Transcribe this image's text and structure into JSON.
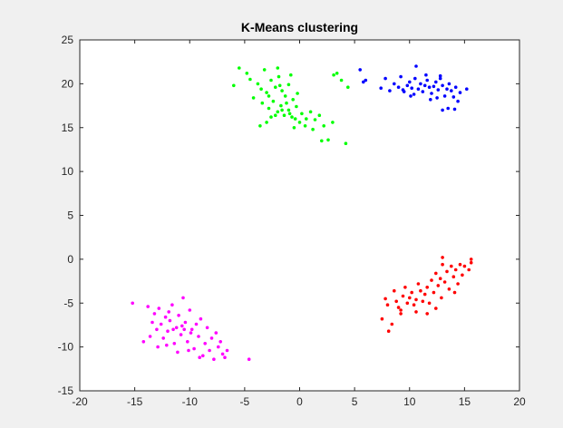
{
  "chart_data": {
    "type": "scatter",
    "title": "K-Means clustering",
    "xlabel": "",
    "ylabel": "",
    "xlim": [
      -20,
      20
    ],
    "ylim": [
      -15,
      25
    ],
    "xticks": [
      -20,
      -15,
      -10,
      -5,
      0,
      5,
      10,
      15,
      20
    ],
    "yticks": [
      -15,
      -10,
      -5,
      0,
      5,
      10,
      15,
      20,
      25
    ],
    "grid": false,
    "legend": "none",
    "series": [
      {
        "color": "#00ff00",
        "points": [
          [
            -5.5,
            21.8
          ],
          [
            -4.8,
            21.2
          ],
          [
            -3.2,
            21.6
          ],
          [
            -2.0,
            21.8
          ],
          [
            -0.8,
            21.0
          ],
          [
            -6.0,
            19.8
          ],
          [
            -4.5,
            20.5
          ],
          [
            -3.8,
            20.0
          ],
          [
            -3.5,
            19.4
          ],
          [
            -3.0,
            19.0
          ],
          [
            -2.6,
            20.4
          ],
          [
            -2.2,
            19.6
          ],
          [
            -1.9,
            20.8
          ],
          [
            -1.6,
            19.2
          ],
          [
            -1.3,
            18.6
          ],
          [
            -1.0,
            19.9
          ],
          [
            -0.6,
            18.2
          ],
          [
            -0.2,
            18.9
          ],
          [
            -4.2,
            18.4
          ],
          [
            -3.4,
            17.8
          ],
          [
            -2.8,
            17.2
          ],
          [
            -2.4,
            18.0
          ],
          [
            -2.0,
            16.8
          ],
          [
            -1.7,
            17.5
          ],
          [
            -1.4,
            16.4
          ],
          [
            -1.0,
            17.0
          ],
          [
            -0.7,
            16.2
          ],
          [
            -0.3,
            17.4
          ],
          [
            0.2,
            16.6
          ],
          [
            0.6,
            16.0
          ],
          [
            1.0,
            16.8
          ],
          [
            1.4,
            15.9
          ],
          [
            1.8,
            16.4
          ],
          [
            0.0,
            15.6
          ],
          [
            0.5,
            15.2
          ],
          [
            -0.5,
            15.0
          ],
          [
            1.2,
            14.8
          ],
          [
            2.2,
            15.2
          ],
          [
            3.0,
            15.6
          ],
          [
            2.6,
            13.6
          ],
          [
            2.0,
            13.5
          ],
          [
            -2.6,
            16.2
          ],
          [
            -3.0,
            15.6
          ],
          [
            -3.6,
            15.2
          ],
          [
            -1.6,
            17.0
          ],
          [
            -2.2,
            16.4
          ],
          [
            -1.2,
            17.8
          ],
          [
            -0.9,
            16.6
          ],
          [
            -0.4,
            16.0
          ],
          [
            3.4,
            21.2
          ],
          [
            3.8,
            20.4
          ],
          [
            3.1,
            21.0
          ],
          [
            4.4,
            19.6
          ],
          [
            4.2,
            13.2
          ],
          [
            -1.8,
            19.8
          ],
          [
            -2.8,
            18.6
          ]
        ]
      },
      {
        "color": "#0000ff",
        "points": [
          [
            5.5,
            21.6
          ],
          [
            6.0,
            20.4
          ],
          [
            5.8,
            20.2
          ],
          [
            7.4,
            19.5
          ],
          [
            7.8,
            20.6
          ],
          [
            8.2,
            19.2
          ],
          [
            8.6,
            20.0
          ],
          [
            9.0,
            19.6
          ],
          [
            9.2,
            20.8
          ],
          [
            9.5,
            19.1
          ],
          [
            9.8,
            19.8
          ],
          [
            10.0,
            20.2
          ],
          [
            10.2,
            19.5
          ],
          [
            10.4,
            18.8
          ],
          [
            10.5,
            20.6
          ],
          [
            10.6,
            22.0
          ],
          [
            10.8,
            19.4
          ],
          [
            11.0,
            20.0
          ],
          [
            11.2,
            19.1
          ],
          [
            11.4,
            19.8
          ],
          [
            11.6,
            20.4
          ],
          [
            11.8,
            19.6
          ],
          [
            12.0,
            18.9
          ],
          [
            12.2,
            19.7
          ],
          [
            12.4,
            20.2
          ],
          [
            12.6,
            19.3
          ],
          [
            12.8,
            20.6
          ],
          [
            13.0,
            19.8
          ],
          [
            13.2,
            18.6
          ],
          [
            13.4,
            19.4
          ],
          [
            13.6,
            20.0
          ],
          [
            13.8,
            19.2
          ],
          [
            14.0,
            18.5
          ],
          [
            14.2,
            19.6
          ],
          [
            14.4,
            18.0
          ],
          [
            14.6,
            19.0
          ],
          [
            15.2,
            19.4
          ],
          [
            13.0,
            17.0
          ],
          [
            13.5,
            17.2
          ],
          [
            14.1,
            17.1
          ],
          [
            11.5,
            21.0
          ],
          [
            12.8,
            20.9
          ],
          [
            10.1,
            18.6
          ],
          [
            9.4,
            19.3
          ],
          [
            11.9,
            18.2
          ],
          [
            12.5,
            18.4
          ]
        ]
      },
      {
        "color": "#ff0000",
        "points": [
          [
            7.5,
            -6.8
          ],
          [
            7.8,
            -4.5
          ],
          [
            8.0,
            -5.2
          ],
          [
            8.1,
            -8.2
          ],
          [
            8.4,
            -7.4
          ],
          [
            8.6,
            -3.6
          ],
          [
            8.8,
            -4.8
          ],
          [
            9.0,
            -5.5
          ],
          [
            9.2,
            -6.2
          ],
          [
            9.4,
            -4.2
          ],
          [
            9.6,
            -3.2
          ],
          [
            9.8,
            -5.0
          ],
          [
            10.0,
            -4.4
          ],
          [
            10.2,
            -3.8
          ],
          [
            10.4,
            -5.2
          ],
          [
            10.6,
            -4.6
          ],
          [
            10.8,
            -2.8
          ],
          [
            11.0,
            -3.6
          ],
          [
            11.2,
            -4.8
          ],
          [
            11.4,
            -4.0
          ],
          [
            11.6,
            -3.2
          ],
          [
            11.8,
            -5.0
          ],
          [
            12.0,
            -2.4
          ],
          [
            12.2,
            -3.8
          ],
          [
            12.4,
            -1.6
          ],
          [
            12.6,
            -3.0
          ],
          [
            12.8,
            -2.2
          ],
          [
            13.0,
            -0.6
          ],
          [
            13.0,
            0.2
          ],
          [
            13.2,
            -2.6
          ],
          [
            13.4,
            -1.4
          ],
          [
            13.6,
            -3.4
          ],
          [
            13.8,
            -0.8
          ],
          [
            14.0,
            -2.0
          ],
          [
            14.2,
            -1.2
          ],
          [
            14.4,
            -2.8
          ],
          [
            14.6,
            -0.6
          ],
          [
            14.8,
            -1.8
          ],
          [
            15.0,
            -0.8
          ],
          [
            15.4,
            -1.2
          ],
          [
            15.6,
            -0.4
          ],
          [
            15.6,
            0.0
          ],
          [
            11.6,
            -6.2
          ],
          [
            12.4,
            -5.6
          ],
          [
            9.2,
            -5.8
          ],
          [
            10.6,
            -6.0
          ],
          [
            12.9,
            -4.4
          ],
          [
            14.1,
            -3.8
          ]
        ]
      },
      {
        "color": "#ff00ff",
        "points": [
          [
            -15.2,
            -5.0
          ],
          [
            -14.2,
            -9.4
          ],
          [
            -13.8,
            -5.4
          ],
          [
            -13.6,
            -8.8
          ],
          [
            -13.4,
            -7.2
          ],
          [
            -13.2,
            -6.2
          ],
          [
            -13.0,
            -8.0
          ],
          [
            -12.8,
            -5.6
          ],
          [
            -12.6,
            -7.4
          ],
          [
            -12.4,
            -9.0
          ],
          [
            -12.2,
            -6.6
          ],
          [
            -12.0,
            -8.2
          ],
          [
            -11.8,
            -7.0
          ],
          [
            -11.6,
            -5.2
          ],
          [
            -11.4,
            -9.6
          ],
          [
            -11.2,
            -7.8
          ],
          [
            -11.0,
            -6.4
          ],
          [
            -10.8,
            -8.6
          ],
          [
            -10.6,
            -4.4
          ],
          [
            -10.4,
            -7.2
          ],
          [
            -10.2,
            -9.4
          ],
          [
            -10.0,
            -5.8
          ],
          [
            -9.8,
            -8.0
          ],
          [
            -9.6,
            -10.2
          ],
          [
            -9.4,
            -7.4
          ],
          [
            -9.2,
            -8.8
          ],
          [
            -9.0,
            -6.8
          ],
          [
            -8.8,
            -11.0
          ],
          [
            -8.6,
            -9.6
          ],
          [
            -8.4,
            -7.8
          ],
          [
            -8.2,
            -10.4
          ],
          [
            -8.0,
            -9.0
          ],
          [
            -7.8,
            -11.4
          ],
          [
            -7.6,
            -8.4
          ],
          [
            -7.4,
            -10.0
          ],
          [
            -7.2,
            -9.4
          ],
          [
            -7.0,
            -10.8
          ],
          [
            -6.8,
            -11.2
          ],
          [
            -6.6,
            -10.4
          ],
          [
            -4.6,
            -11.4
          ],
          [
            -12.9,
            -10.0
          ],
          [
            -12.1,
            -9.8
          ],
          [
            -11.1,
            -10.6
          ],
          [
            -10.1,
            -10.4
          ],
          [
            -9.1,
            -11.2
          ],
          [
            -11.5,
            -8.0
          ],
          [
            -10.7,
            -7.6
          ],
          [
            -9.9,
            -8.4
          ],
          [
            -11.9,
            -6.0
          ],
          [
            -10.5,
            -8.0
          ]
        ]
      }
    ]
  }
}
